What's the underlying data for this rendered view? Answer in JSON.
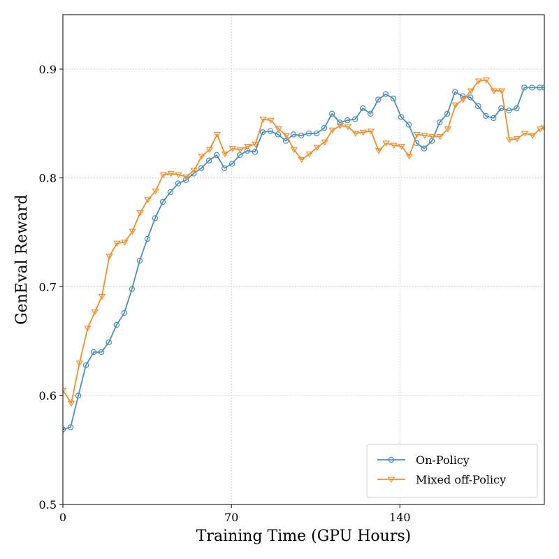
{
  "chart_data": {
    "type": "line",
    "title": "",
    "xlabel": "Training Time (GPU Hours)",
    "ylabel": "GenEval Reward",
    "xlim": [
      0,
      200
    ],
    "ylim": [
      0.5,
      0.95
    ],
    "xticks": [
      0,
      70,
      140
    ],
    "xtick_labels": [
      "0",
      "70",
      "140"
    ],
    "yticks": [
      0.5,
      0.6,
      0.7,
      0.8,
      0.9
    ],
    "ytick_labels": [
      "0.5",
      "0.6",
      "0.7",
      "0.8",
      "0.9"
    ],
    "grid": true,
    "legend_position": "bottom-right",
    "series": [
      {
        "name": "On-Policy",
        "color": "#4a8fbd",
        "marker": "circle",
        "x": [
          0,
          3.2,
          6.4,
          9.6,
          12.8,
          16.0,
          19.1,
          22.3,
          25.5,
          28.7,
          31.9,
          35.1,
          38.3,
          41.5,
          44.7,
          47.9,
          51.1,
          54.3,
          57.5,
          60.7,
          63.9,
          67.1,
          70.3,
          73.5,
          76.6,
          79.8,
          83.0,
          86.2,
          89.4,
          92.6,
          95.8,
          99.0,
          102.2,
          105.4,
          108.6,
          111.8,
          115.0,
          118.2,
          121.4,
          124.6,
          127.8,
          131.0,
          134.1,
          137.3,
          140.5,
          143.7,
          146.9,
          150.1,
          153.3,
          156.5,
          159.7,
          162.9,
          166.1,
          169.3,
          172.5,
          175.7,
          178.9,
          182.1,
          185.3,
          188.5,
          191.7,
          194.9,
          198.1,
          200
        ],
        "values": [
          0.569,
          0.571,
          0.6,
          0.628,
          0.64,
          0.64,
          0.649,
          0.665,
          0.676,
          0.698,
          0.724,
          0.744,
          0.763,
          0.778,
          0.787,
          0.795,
          0.798,
          0.804,
          0.809,
          0.816,
          0.821,
          0.809,
          0.813,
          0.821,
          0.825,
          0.824,
          0.842,
          0.843,
          0.84,
          0.834,
          0.84,
          0.839,
          0.841,
          0.841,
          0.846,
          0.859,
          0.851,
          0.853,
          0.854,
          0.864,
          0.859,
          0.872,
          0.877,
          0.873,
          0.856,
          0.849,
          0.832,
          0.827,
          0.834,
          0.851,
          0.859,
          0.879,
          0.875,
          0.874,
          0.866,
          0.857,
          0.855,
          0.864,
          0.862,
          0.864,
          0.883,
          0.883,
          0.883,
          0.883
        ]
      },
      {
        "name": "Mixed off-Policy",
        "color": "#f28e2b",
        "marker": "triangle-down",
        "x": [
          0,
          3.5,
          6.9,
          10.3,
          13.3,
          16.2,
          19.3,
          22.5,
          25.7,
          28.9,
          32.1,
          35.3,
          38.5,
          41.7,
          44.9,
          48.1,
          51.3,
          54.5,
          57.7,
          60.9,
          64.1,
          67.3,
          70.5,
          73.7,
          76.8,
          80.0,
          83.2,
          86.4,
          89.6,
          92.8,
          96.0,
          99.2,
          102.4,
          105.6,
          108.8,
          112.0,
          115.2,
          118.4,
          121.6,
          124.8,
          128.0,
          131.2,
          134.3,
          137.5,
          140.7,
          143.9,
          147.1,
          150.3,
          153.5,
          156.7,
          159.9,
          163.1,
          166.3,
          169.5,
          172.7,
          175.9,
          179.1,
          182.3,
          185.5,
          188.7,
          191.9,
          195.1,
          198.3,
          200
        ],
        "values": [
          0.605,
          0.593,
          0.63,
          0.662,
          0.677,
          0.691,
          0.728,
          0.74,
          0.741,
          0.751,
          0.768,
          0.78,
          0.788,
          0.803,
          0.804,
          0.803,
          0.801,
          0.807,
          0.82,
          0.826,
          0.84,
          0.822,
          0.827,
          0.826,
          0.829,
          0.831,
          0.854,
          0.853,
          0.845,
          0.839,
          0.826,
          0.817,
          0.822,
          0.828,
          0.833,
          0.844,
          0.848,
          0.847,
          0.841,
          0.842,
          0.843,
          0.825,
          0.832,
          0.83,
          0.829,
          0.82,
          0.84,
          0.839,
          0.838,
          0.838,
          0.845,
          0.867,
          0.872,
          0.88,
          0.889,
          0.89,
          0.88,
          0.88,
          0.835,
          0.836,
          0.841,
          0.839,
          0.845,
          0.846
        ]
      }
    ]
  }
}
